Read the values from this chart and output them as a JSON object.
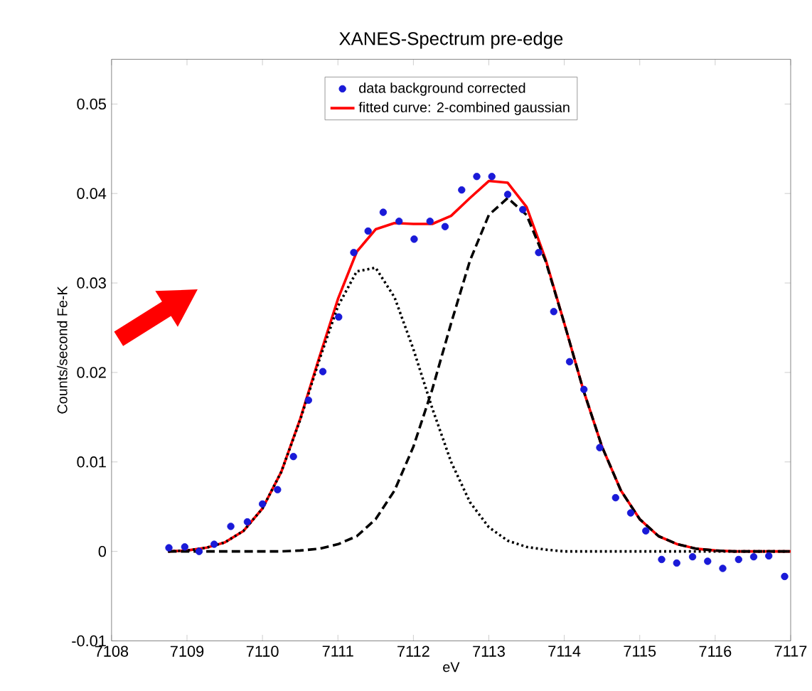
{
  "chart_data": {
    "type": "line",
    "title": "XANES-Spectrum pre-edge",
    "xlabel": "eV",
    "ylabel": "Counts/second Fe-K",
    "xlim": [
      7108,
      7117
    ],
    "ylim": [
      -0.01,
      0.055
    ],
    "xticks": [
      7108,
      7109,
      7110,
      7111,
      7112,
      7113,
      7114,
      7115,
      7116,
      7117
    ],
    "yticks": [
      -0.01,
      0,
      0.01,
      0.02,
      0.03,
      0.04,
      0.05
    ],
    "grid": false,
    "legend": "top",
    "series": [
      {
        "name": "data background corrected",
        "type": "scatter",
        "marker": "circle",
        "color": "#1a1ad8",
        "x": [
          7108.76,
          7108.97,
          7109.16,
          7109.36,
          7109.58,
          7109.8,
          7110.0,
          7110.2,
          7110.41,
          7110.61,
          7110.8,
          7111.01,
          7111.21,
          7111.4,
          7111.6,
          7111.81,
          7112.01,
          7112.22,
          7112.42,
          7112.64,
          7112.84,
          7113.04,
          7113.25,
          7113.45,
          7113.66,
          7113.86,
          7114.07,
          7114.26,
          7114.47,
          7114.68,
          7114.88,
          7115.08,
          7115.29,
          7115.49,
          7115.7,
          7115.9,
          7116.1,
          7116.31,
          7116.51,
          7116.71,
          7116.92
        ],
        "values": [
          0.0004,
          0.0005,
          0.0,
          0.0008,
          0.0028,
          0.0033,
          0.0053,
          0.0069,
          0.0106,
          0.0169,
          0.0201,
          0.0262,
          0.0334,
          0.0358,
          0.0379,
          0.0369,
          0.0349,
          0.0369,
          0.0363,
          0.0404,
          0.0419,
          0.0419,
          0.0399,
          0.0382,
          0.0334,
          0.0268,
          0.0212,
          0.0181,
          0.0116,
          0.006,
          0.0043,
          0.0023,
          -0.0009,
          -0.0013,
          -0.0006,
          -0.0011,
          -0.0019,
          -0.0009,
          -0.0006,
          -0.0005,
          -0.0028
        ]
      },
      {
        "name": "fitted curve: 2-combined gaussian",
        "marker": "none",
        "line_style": "solid",
        "color": "#ff0000",
        "x": [
          7108.75,
          7109,
          7109.25,
          7109.5,
          7109.75,
          7110,
          7110.25,
          7110.5,
          7110.75,
          7111,
          7111.25,
          7111.5,
          7111.75,
          7112,
          7112.25,
          7112.5,
          7112.75,
          7113,
          7113.25,
          7113.5,
          7113.75,
          7114,
          7114.25,
          7114.5,
          7114.75,
          7115,
          7115.25,
          7115.5,
          7115.75,
          7116,
          7116.25,
          7116.5,
          7116.75,
          7117
        ],
        "values": [
          0,
          0.0001,
          0.0004,
          0.001,
          0.0023,
          0.0048,
          0.0089,
          0.0148,
          0.0216,
          0.0282,
          0.0335,
          0.036,
          0.0367,
          0.0366,
          0.0366,
          0.0375,
          0.0395,
          0.0414,
          0.0412,
          0.0385,
          0.0327,
          0.0255,
          0.0181,
          0.0117,
          0.0068,
          0.0036,
          0.0017,
          0.0008,
          0.0003,
          0.0001,
          0,
          0,
          0,
          0
        ]
      },
      {
        "marker": "none",
        "line_style": "dotted",
        "color": "#000000",
        "x": [
          7108.75,
          7109,
          7109.25,
          7109.5,
          7109.75,
          7110,
          7110.25,
          7110.5,
          7110.75,
          7111,
          7111.25,
          7111.5,
          7111.75,
          7112,
          7112.25,
          7112.5,
          7112.75,
          7113,
          7113.25,
          7113.5,
          7113.75,
          7114,
          7114.25,
          7114.5,
          7114.75,
          7115,
          7115.25,
          7115.5,
          7115.75,
          7116,
          7116.25,
          7116.5,
          7116.75,
          7117
        ],
        "values": [
          0,
          0.0001,
          0.0004,
          0.001,
          0.0023,
          0.0048,
          0.0089,
          0.0147,
          0.0213,
          0.0274,
          0.0313,
          0.0317,
          0.0284,
          0.0226,
          0.016,
          0.01,
          0.0055,
          0.0027,
          0.0012,
          0.0005,
          0.0002,
          0,
          0,
          0,
          0,
          0,
          0,
          0,
          0,
          0,
          0,
          0,
          0,
          0
        ]
      },
      {
        "marker": "none",
        "line_style": "dashed",
        "color": "#000000",
        "x": [
          7108.75,
          7109,
          7109.25,
          7109.5,
          7109.75,
          7110,
          7110.25,
          7110.5,
          7110.75,
          7111,
          7111.25,
          7111.5,
          7111.75,
          7112,
          7112.25,
          7112.5,
          7112.75,
          7113,
          7113.25,
          7113.5,
          7113.75,
          7114,
          7114.25,
          7114.5,
          7114.75,
          7115,
          7115.25,
          7115.5,
          7115.75,
          7116,
          7116.25,
          7116.5,
          7116.75,
          7117
        ],
        "values": [
          0,
          0,
          0,
          0,
          0,
          0,
          0,
          0.0001,
          0.0003,
          0.0008,
          0.0017,
          0.0036,
          0.0068,
          0.0117,
          0.0181,
          0.0255,
          0.0325,
          0.0376,
          0.0395,
          0.0376,
          0.0325,
          0.0255,
          0.0181,
          0.0117,
          0.0068,
          0.0036,
          0.0017,
          0.0008,
          0.0003,
          0.0001,
          0,
          0,
          0,
          0
        ]
      }
    ]
  }
}
